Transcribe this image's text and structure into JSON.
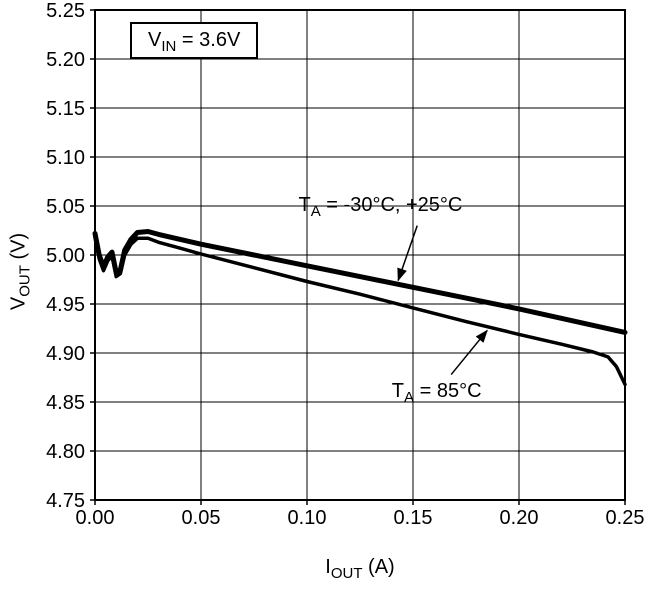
{
  "chart_data": {
    "type": "line",
    "title": "",
    "condition": {
      "pre": "V",
      "sub": "IN",
      "post": " = 3.6V"
    },
    "xlabel": {
      "pre": "I",
      "sub": "OUT",
      "post": " (A)"
    },
    "ylabel": {
      "pre": "V",
      "sub": "OUT",
      "post": " (V)"
    },
    "xlim": [
      0,
      0.25
    ],
    "ylim": [
      4.75,
      5.25
    ],
    "xticks": [
      0,
      0.05,
      0.1,
      0.15,
      0.2,
      0.25
    ],
    "xtick_labels": [
      "0.00",
      "0.05",
      "0.10",
      "0.15",
      "0.20",
      "0.25"
    ],
    "yticks": [
      4.75,
      4.8,
      4.85,
      4.9,
      4.95,
      5.0,
      5.05,
      5.1,
      5.15,
      5.2,
      5.25
    ],
    "ytick_labels": [
      "4.75",
      "4.80",
      "4.85",
      "4.90",
      "4.95",
      "5.00",
      "5.05",
      "5.10",
      "5.15",
      "5.20",
      "5.25"
    ],
    "grid": true,
    "legend_position": "none",
    "line_color": "#000000",
    "series": [
      {
        "name": "TA = -30°C, +25°C",
        "stroke_width": 5,
        "points": [
          [
            0.0,
            5.022
          ],
          [
            0.002,
            5.0
          ],
          [
            0.004,
            4.988
          ],
          [
            0.006,
            4.998
          ],
          [
            0.008,
            5.003
          ],
          [
            0.01,
            4.982
          ],
          [
            0.012,
            4.985
          ],
          [
            0.014,
            5.005
          ],
          [
            0.017,
            5.016
          ],
          [
            0.02,
            5.023
          ],
          [
            0.025,
            5.024
          ],
          [
            0.03,
            5.021
          ],
          [
            0.04,
            5.016
          ],
          [
            0.05,
            5.011
          ],
          [
            0.075,
            5.0
          ],
          [
            0.1,
            4.989
          ],
          [
            0.125,
            4.978
          ],
          [
            0.15,
            4.967
          ],
          [
            0.175,
            4.956
          ],
          [
            0.2,
            4.945
          ],
          [
            0.225,
            4.933
          ],
          [
            0.25,
            4.921
          ]
        ]
      },
      {
        "name": "TA = 85°C",
        "stroke_width": 3.5,
        "points": [
          [
            0.0,
            5.018
          ],
          [
            0.002,
            4.996
          ],
          [
            0.004,
            4.984
          ],
          [
            0.006,
            4.994
          ],
          [
            0.008,
            4.999
          ],
          [
            0.01,
            4.978
          ],
          [
            0.012,
            4.981
          ],
          [
            0.014,
            5.0
          ],
          [
            0.017,
            5.011
          ],
          [
            0.02,
            5.017
          ],
          [
            0.025,
            5.017
          ],
          [
            0.03,
            5.013
          ],
          [
            0.04,
            5.007
          ],
          [
            0.05,
            5.001
          ],
          [
            0.075,
            4.987
          ],
          [
            0.1,
            4.973
          ],
          [
            0.125,
            4.96
          ],
          [
            0.15,
            4.946
          ],
          [
            0.175,
            4.932
          ],
          [
            0.2,
            4.919
          ],
          [
            0.22,
            4.909
          ],
          [
            0.235,
            4.901
          ],
          [
            0.242,
            4.896
          ],
          [
            0.246,
            4.886
          ],
          [
            0.25,
            4.868
          ]
        ]
      }
    ],
    "annotations": [
      {
        "pre": "T",
        "sub": "A",
        "post": " = -30°C, +25°C",
        "x": 0.096,
        "y": 5.062,
        "arrow": {
          "x1": 0.152,
          "y1": 5.03,
          "x2": 0.143,
          "y2": 4.974
        }
      },
      {
        "pre": "T",
        "sub": "A",
        "post": " = 85°C",
        "x": 0.14,
        "y": 4.872,
        "arrow": {
          "x1": 0.168,
          "y1": 4.878,
          "x2": 0.185,
          "y2": 4.923
        }
      }
    ]
  }
}
